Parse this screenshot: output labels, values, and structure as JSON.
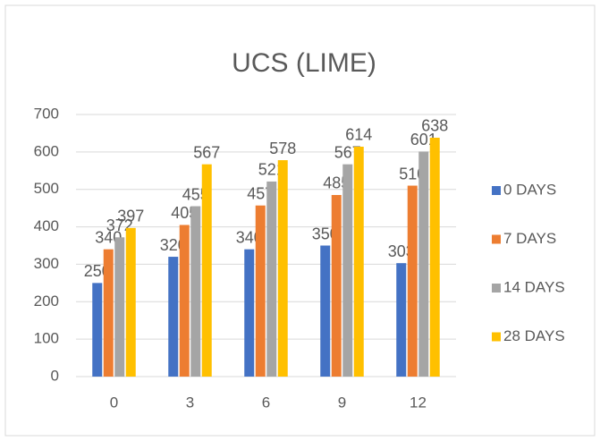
{
  "chart_data": {
    "type": "bar",
    "title": "UCS (LIME)",
    "categories": [
      "0",
      "3",
      "6",
      "9",
      "12"
    ],
    "series": [
      {
        "name": "0 DAYS",
        "color": "#4472c4",
        "values": [
          250,
          320,
          340,
          350,
          303
        ]
      },
      {
        "name": "7 DAYS",
        "color": "#ed7d31",
        "values": [
          340,
          405,
          457,
          485,
          510
        ]
      },
      {
        "name": "14 DAYS",
        "color": "#a5a5a5",
        "values": [
          372,
          455,
          521,
          567,
          601
        ]
      },
      {
        "name": "28 DAYS",
        "color": "#ffc000",
        "values": [
          397,
          567,
          578,
          614,
          638
        ]
      }
    ],
    "ylim": [
      0,
      700
    ],
    "yticks": [
      0,
      100,
      200,
      300,
      400,
      500,
      600,
      700
    ],
    "grid": true,
    "legend": "right"
  }
}
